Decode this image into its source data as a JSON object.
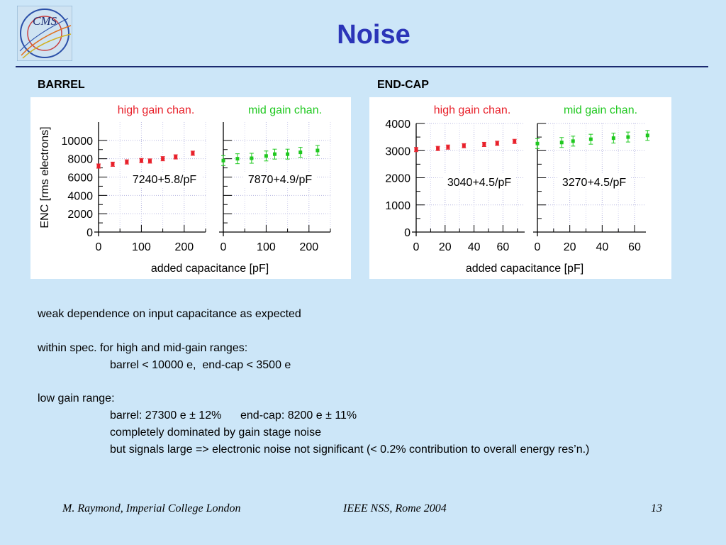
{
  "slide": {
    "title": "Noise",
    "barrel_label": "BARREL",
    "endcap_label": "END-CAP",
    "logo_text": "CMS"
  },
  "chart_data": [
    {
      "type": "scatter",
      "group": "BARREL",
      "title": "high gain chan.",
      "ylabel": "ENC [rms electrons]",
      "xlabel": "added capacitance [pF]",
      "xlim": [
        0,
        250
      ],
      "ylim": [
        0,
        12000
      ],
      "xticks": [
        0,
        100,
        200
      ],
      "yticks": [
        0,
        2000,
        4000,
        6000,
        8000,
        10000
      ],
      "annotation": "7240+5.8/pF",
      "color": "#e8202a",
      "x": [
        0,
        33,
        66,
        100,
        120,
        150,
        180,
        220
      ],
      "y": [
        7200,
        7400,
        7650,
        7800,
        7750,
        8000,
        8200,
        8600
      ]
    },
    {
      "type": "scatter",
      "group": "BARREL",
      "title": "mid gain chan.",
      "xlim": [
        0,
        250
      ],
      "ylim": [
        0,
        12000
      ],
      "xticks": [
        0,
        100,
        200
      ],
      "annotation": "7870+4.9/pF",
      "color": "#1fc81f",
      "x": [
        0,
        33,
        66,
        100,
        120,
        150,
        180,
        220
      ],
      "y": [
        7800,
        8000,
        8050,
        8300,
        8500,
        8500,
        8700,
        8900
      ]
    },
    {
      "type": "scatter",
      "group": "END-CAP",
      "title": "high gain chan.",
      "xlabel": "added capacitance [pF]",
      "xlim": [
        0,
        75
      ],
      "ylim": [
        0,
        4000
      ],
      "xticks": [
        0,
        20,
        40,
        60
      ],
      "yticks": [
        0,
        1000,
        2000,
        3000,
        4000
      ],
      "annotation": "3040+4.5/pF",
      "color": "#e8202a",
      "x": [
        0,
        15,
        22,
        33,
        47,
        56,
        68
      ],
      "y": [
        3040,
        3080,
        3130,
        3180,
        3230,
        3270,
        3340
      ]
    },
    {
      "type": "scatter",
      "group": "END-CAP",
      "title": "mid gain chan.",
      "xlim": [
        0,
        67
      ],
      "ylim": [
        0,
        4000
      ],
      "xticks": [
        0,
        20,
        40,
        60
      ],
      "annotation": "3270+4.5/pF",
      "color": "#1fc81f",
      "x": [
        0,
        15,
        22,
        33,
        47,
        56,
        68
      ],
      "y": [
        3260,
        3300,
        3350,
        3420,
        3460,
        3500,
        3560
      ]
    }
  ],
  "body_text": {
    "line1": "weak dependence on input capacitance as expected",
    "line2": "within spec. for high and mid-gain ranges:",
    "line3": "barrel < 10000 e,  end-cap < 3500 e",
    "line4": "low gain range:",
    "line5": "barrel: 27300 e ± 12%      end-cap: 8200 e ± 11%",
    "line6": "completely dominated by gain stage noise",
    "line7": "but signals large => electronic noise not significant (< 0.2% contribution to overall energy res’n.)"
  },
  "footer": {
    "author": "M. Raymond, Imperial College London",
    "conference": "IEEE NSS, Rome 2004",
    "page": "13"
  }
}
